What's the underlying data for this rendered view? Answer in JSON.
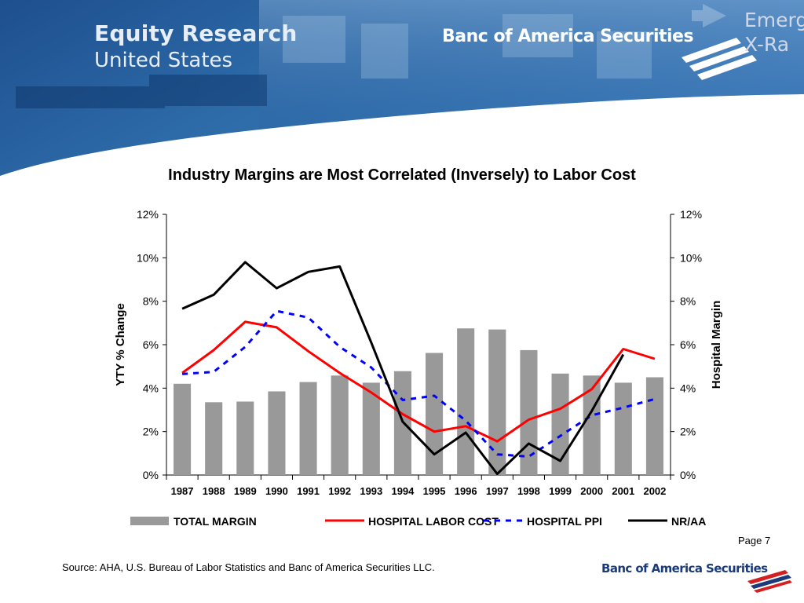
{
  "header": {
    "title_line1": "Equity Research",
    "title_line2": "United States",
    "brand": "Banc of America Securities",
    "corner_text": "Emerg\nX-Ra"
  },
  "chart_data": {
    "type": "bar+line",
    "title": "Industry Margins are Most Correlated (Inversely) to Labor Cost",
    "categories": [
      "1987",
      "1988",
      "1989",
      "1990",
      "1991",
      "1992",
      "1993",
      "1994",
      "1995",
      "1996",
      "1997",
      "1998",
      "1999",
      "2000",
      "2001",
      "2002"
    ],
    "y_left": {
      "label": "YTY % Change",
      "ticks": [
        "12%",
        "10%",
        "8%",
        "6%",
        "4%",
        "2%",
        "0%"
      ],
      "range": [
        0,
        12
      ]
    },
    "y_right": {
      "label": "Hospital Margin",
      "ticks": [
        "12%",
        "10%",
        "8%",
        "6%",
        "4%",
        "2%",
        "0%"
      ],
      "range": [
        0,
        12
      ]
    },
    "series": [
      {
        "name": "TOTAL MARGIN",
        "kind": "bar",
        "axis": "right",
        "color": "#999999",
        "values": [
          4.2,
          3.35,
          3.38,
          3.85,
          4.28,
          4.58,
          4.25,
          4.78,
          5.62,
          6.75,
          6.7,
          5.75,
          4.67,
          4.58,
          4.25,
          4.5
        ]
      },
      {
        "name": "HOSPITAL LABOR COST",
        "kind": "line",
        "axis": "left",
        "color": "#ff0000",
        "dash": "solid",
        "values": [
          4.7,
          5.75,
          7.05,
          6.8,
          5.7,
          4.7,
          3.8,
          2.8,
          2.0,
          2.25,
          1.55,
          2.55,
          3.05,
          3.95,
          5.8,
          5.35
        ]
      },
      {
        "name": "HOSPITAL PPI",
        "kind": "line",
        "axis": "left",
        "color": "#0000ff",
        "dash": "dashed",
        "values": [
          4.65,
          4.75,
          5.9,
          7.55,
          7.25,
          5.9,
          4.95,
          3.45,
          3.65,
          2.5,
          0.95,
          0.85,
          1.8,
          2.75,
          3.1,
          3.5
        ]
      },
      {
        "name": "NR/AA",
        "kind": "line",
        "axis": "left",
        "color": "#000000",
        "dash": "solid",
        "values": [
          7.65,
          8.3,
          9.8,
          8.6,
          9.35,
          9.6,
          6.1,
          2.45,
          0.95,
          1.95,
          0.05,
          1.45,
          0.65,
          2.95,
          5.55,
          null
        ]
      }
    ],
    "legend_position": "bottom",
    "grid": false
  },
  "footer": {
    "page": "Page 7",
    "source": "Source: AHA, U.S. Bureau of Labor Statistics and Banc of America Securities LLC.",
    "brand": "Banc of America Securities"
  }
}
